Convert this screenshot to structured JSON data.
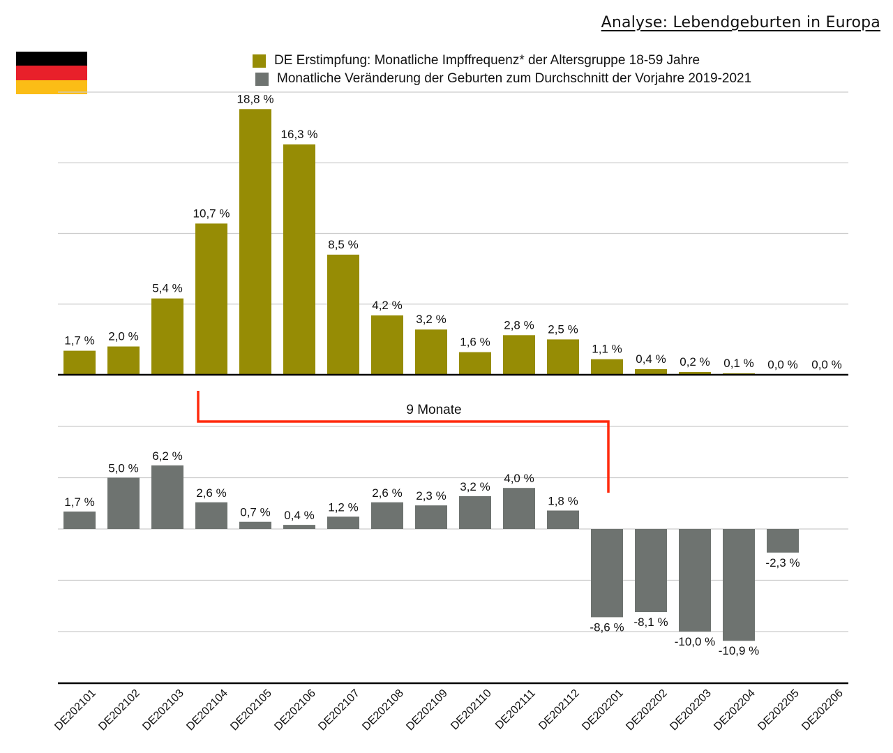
{
  "title": "Analyse: Lebendgeburten in Europa",
  "flag": {
    "country": "Germany",
    "colors": [
      "#000000",
      "#e8202a",
      "#fbbd16"
    ]
  },
  "legend": [
    {
      "label": "DE Erstimpfung: Monatliche Impffrequenz* der Altersgruppe 18-59 Jahre",
      "color": "#968c05"
    },
    {
      "label": "Monatliche Veränderung der Geburten zum Durchschnitt der Vorjahre 2019-2021",
      "color": "#6e7370"
    }
  ],
  "annotation": {
    "label": "9 Monate",
    "color": "#ff2a0d",
    "from": "DE202104",
    "to": "DE202201"
  },
  "chart_data": [
    {
      "type": "bar",
      "name": "DE Erstimpfung: Monatliche Impffrequenz* der Altersgruppe 18-59 Jahre",
      "categories": [
        "DE202101",
        "DE202102",
        "DE202103",
        "DE202104",
        "DE202105",
        "DE202106",
        "DE202107",
        "DE202108",
        "DE202109",
        "DE202110",
        "DE202111",
        "DE202112",
        "DE202201",
        "DE202202",
        "DE202203",
        "DE202204",
        "DE202205",
        "DE202206"
      ],
      "values": [
        1.7,
        2.0,
        5.4,
        10.7,
        18.8,
        16.3,
        8.5,
        4.2,
        3.2,
        1.6,
        2.8,
        2.5,
        1.1,
        0.4,
        0.2,
        0.1,
        0.0,
        0.0
      ],
      "labels": [
        "1,7 %",
        "2,0 %",
        "5,4 %",
        "10,7 %",
        "18,8 %",
        "16,3 %",
        "8,5 %",
        "4,2 %",
        "3,2 %",
        "1,6 %",
        "2,8 %",
        "2,5 %",
        "1,1 %",
        "0,4 %",
        "0,2 %",
        "0,1 %",
        "0,0 %",
        "0,0 %"
      ],
      "ylim": [
        0,
        20
      ],
      "gridlines": [
        5,
        10,
        15,
        20
      ],
      "color": "#968c05",
      "grid": true
    },
    {
      "type": "bar",
      "name": "Monatliche Veränderung der Geburten zum Durchschnitt der Vorjahre 2019-2021",
      "categories": [
        "DE202101",
        "DE202102",
        "DE202103",
        "DE202104",
        "DE202105",
        "DE202106",
        "DE202107",
        "DE202108",
        "DE202109",
        "DE202110",
        "DE202111",
        "DE202112",
        "DE202201",
        "DE202202",
        "DE202203",
        "DE202204",
        "DE202205",
        "DE202206"
      ],
      "values": [
        1.7,
        5.0,
        6.2,
        2.6,
        0.7,
        0.4,
        1.2,
        2.6,
        2.3,
        3.2,
        4.0,
        1.8,
        -8.6,
        -8.1,
        -10.0,
        -10.9,
        -2.3,
        null
      ],
      "labels": [
        "1,7 %",
        "5,0 %",
        "6,2 %",
        "2,6 %",
        "0,7 %",
        "0,4 %",
        "1,2 %",
        "2,6 %",
        "2,3 %",
        "3,2 %",
        "4,0 %",
        "1,8 %",
        "-8,6 %",
        "-8,1 %",
        "-10,0 %",
        "-10,9 %",
        "-2,3 %",
        ""
      ],
      "ylim": [
        -15,
        10
      ],
      "gridlines": [
        -15,
        -10,
        -5,
        0,
        5,
        10
      ],
      "color": "#6e7370",
      "grid": true
    }
  ]
}
